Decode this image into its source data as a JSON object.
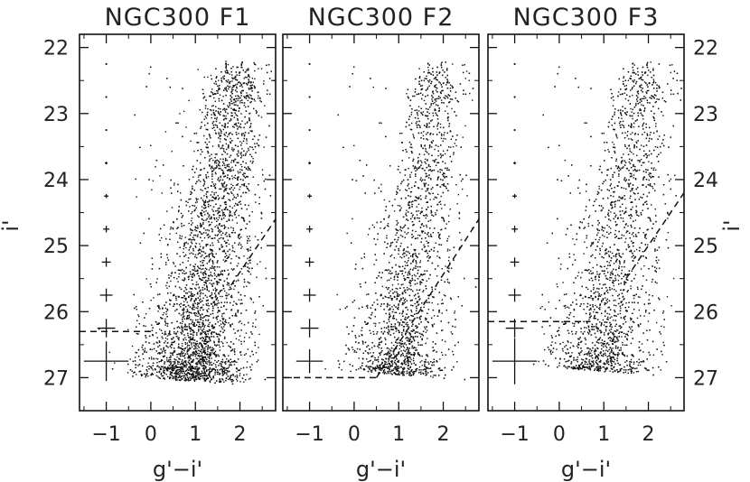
{
  "figure": {
    "ylabel": "i'",
    "y_tick_labels": [
      "22",
      "23",
      "24",
      "25",
      "26",
      "27"
    ],
    "x_tick_labels": [
      "−1",
      "0",
      "1",
      "2"
    ]
  },
  "chart_data": [
    {
      "type": "scatter",
      "title": "NGC300 F1",
      "xlabel": "g'−i'",
      "ylabel": "i'",
      "xlim": [
        -1.6,
        2.8
      ],
      "ylim": [
        27.5,
        21.8
      ],
      "y_inverted": true,
      "x_ticks": [
        -1,
        0,
        1,
        2
      ],
      "y_ticks": [
        22,
        23,
        24,
        25,
        26,
        27
      ],
      "error_bars": {
        "x": -1,
        "mags": [
          22.25,
          22.75,
          23.25,
          23.75,
          24.25,
          24.75,
          25.25,
          25.75,
          26.25,
          26.75
        ],
        "err_color": [
          0.0,
          0.01,
          0.02,
          0.03,
          0.05,
          0.07,
          0.1,
          0.14,
          0.2,
          0.5
        ],
        "err_mag": [
          0.0,
          0.01,
          0.01,
          0.02,
          0.03,
          0.05,
          0.07,
          0.1,
          0.14,
          0.3
        ]
      },
      "completeness_limit": {
        "mag": 26.3,
        "xmax": 0.0
      },
      "red_limit_line": {
        "points": [
          [
            1.8,
            25.6
          ],
          [
            2.8,
            24.6
          ]
        ],
        "style": "dashed"
      },
      "point_density": {
        "count": 5200,
        "description": "broad red giant branch"
      }
    },
    {
      "type": "scatter",
      "title": "NGC300 F2",
      "xlabel": "g'−i'",
      "ylabel": "i'",
      "xlim": [
        -1.6,
        2.8
      ],
      "ylim": [
        27.5,
        21.8
      ],
      "y_inverted": true,
      "x_ticks": [
        -1,
        0,
        1,
        2
      ],
      "y_ticks": [
        22,
        23,
        24,
        25,
        26,
        27
      ],
      "error_bars": {
        "x": -1,
        "mags": [
          22.25,
          22.75,
          23.25,
          23.75,
          24.25,
          24.75,
          25.25,
          25.75,
          26.25,
          26.75
        ],
        "err_color": [
          0.0,
          0.01,
          0.02,
          0.03,
          0.05,
          0.07,
          0.1,
          0.14,
          0.2,
          0.3
        ],
        "err_mag": [
          0.0,
          0.01,
          0.01,
          0.02,
          0.03,
          0.05,
          0.07,
          0.1,
          0.14,
          0.18
        ]
      },
      "completeness_limit": {
        "mag": 27.0,
        "xmax": 0.5
      },
      "red_limit_line": {
        "points": [
          [
            0.5,
            27.0
          ],
          [
            2.8,
            24.6
          ]
        ],
        "style": "dashed"
      },
      "point_density": {
        "count": 3400,
        "description": "narrower red giant branch"
      }
    },
    {
      "type": "scatter",
      "title": "NGC300 F3",
      "xlabel": "g'−i'",
      "ylabel": "i'",
      "xlim": [
        -1.6,
        2.8
      ],
      "ylim": [
        27.5,
        21.8
      ],
      "y_inverted": true,
      "x_ticks": [
        -1,
        0,
        1,
        2
      ],
      "y_ticks": [
        22,
        23,
        24,
        25,
        26,
        27
      ],
      "error_bars": {
        "x": -1,
        "mags": [
          22.25,
          22.75,
          23.25,
          23.75,
          24.25,
          24.75,
          25.25,
          25.75,
          26.25,
          26.75
        ],
        "err_color": [
          0.0,
          0.01,
          0.02,
          0.03,
          0.05,
          0.07,
          0.1,
          0.14,
          0.2,
          0.5
        ],
        "err_mag": [
          0.0,
          0.01,
          0.01,
          0.02,
          0.03,
          0.05,
          0.07,
          0.1,
          0.14,
          0.35
        ]
      },
      "completeness_limit": {
        "mag": 26.15,
        "xmax": 0.7
      },
      "red_limit_line": {
        "points": [
          [
            1.5,
            25.5
          ],
          [
            2.8,
            24.2
          ]
        ],
        "style": "dashed"
      },
      "point_density": {
        "count": 3600,
        "description": "red giant branch"
      }
    }
  ]
}
